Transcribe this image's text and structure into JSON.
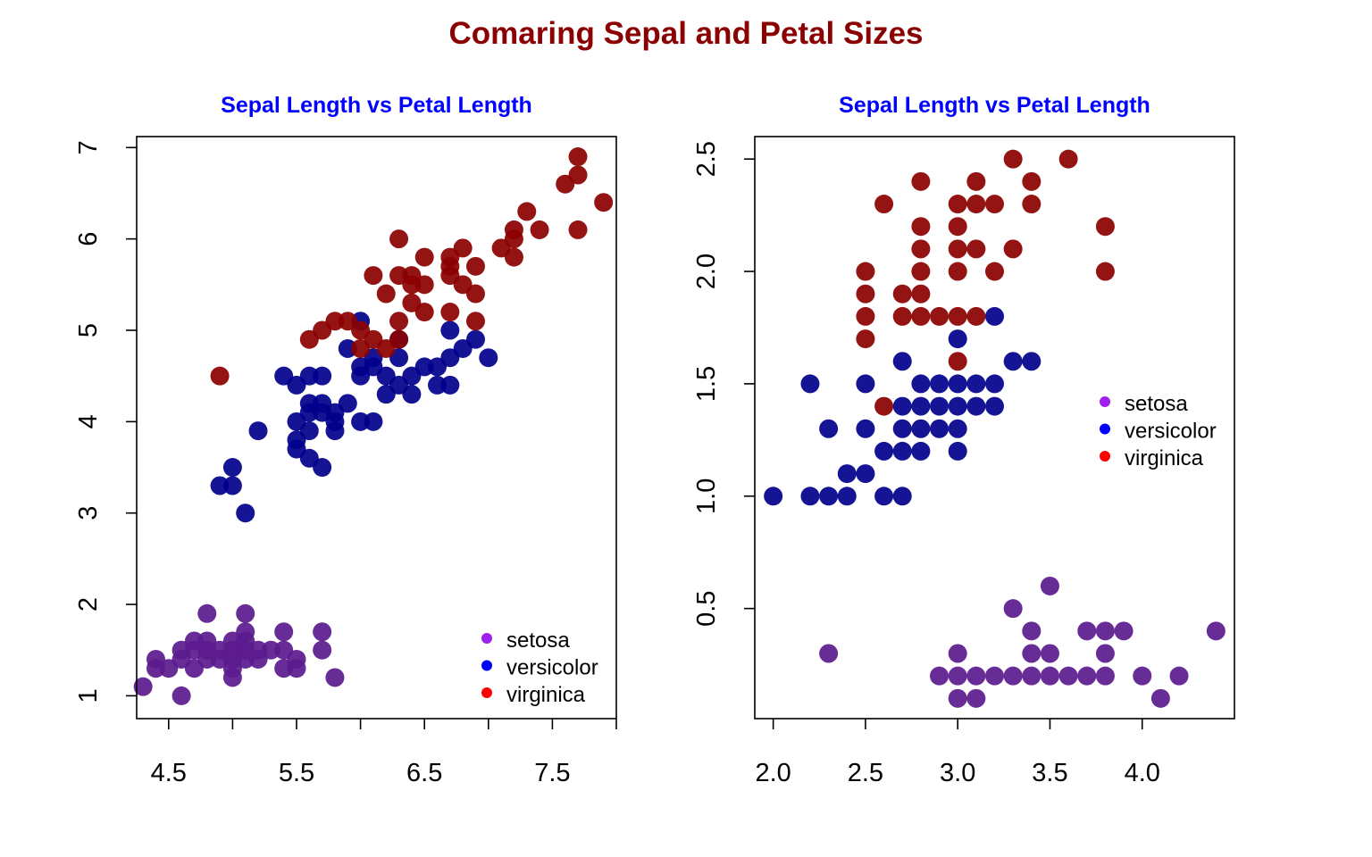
{
  "figure": {
    "title": "Comaring Sepal and Petal Sizes",
    "title_color": "#8B0000",
    "panel_title_color": "#0000FF",
    "legend_items": [
      {
        "label": "setosa",
        "color": "#A020F0"
      },
      {
        "label": "versicolor",
        "color": "#0000FF"
      },
      {
        "label": "virginica",
        "color": "#FF0000"
      }
    ]
  },
  "chart_data": [
    {
      "type": "scatter",
      "title": "Sepal Length vs Petal Length",
      "xlabel": "",
      "ylabel": "",
      "xlim": [
        4.25,
        8.0
      ],
      "ylim": [
        0.75,
        7.12
      ],
      "xticks": [
        4.5,
        5.0,
        5.5,
        6.0,
        6.5,
        7.0,
        7.5,
        8.0
      ],
      "xtick_labels": [
        "4.5",
        "",
        "5.5",
        "",
        "6.5",
        "",
        "7.5",
        ""
      ],
      "yticks": [
        1,
        2,
        3,
        4,
        5,
        6,
        7
      ],
      "ytick_labels": [
        "1",
        "2",
        "3",
        "4",
        "5",
        "6",
        "7"
      ],
      "grid": false,
      "legend_position": "bottom-right",
      "series": [
        {
          "name": "setosa",
          "color": "#A020F0",
          "points": [
            [
              4.3,
              1.1
            ],
            [
              4.4,
              1.4
            ],
            [
              4.4,
              1.3
            ],
            [
              4.5,
              1.3
            ],
            [
              4.6,
              1.4
            ],
            [
              4.6,
              1.5
            ],
            [
              4.6,
              1.0
            ],
            [
              4.7,
              1.3
            ],
            [
              4.7,
              1.6
            ],
            [
              4.7,
              1.5
            ],
            [
              4.8,
              1.6
            ],
            [
              4.8,
              1.4
            ],
            [
              4.8,
              1.9
            ],
            [
              4.8,
              1.5
            ],
            [
              4.9,
              1.5
            ],
            [
              4.9,
              1.4
            ],
            [
              5.0,
              1.4
            ],
            [
              5.0,
              1.5
            ],
            [
              5.0,
              1.6
            ],
            [
              5.0,
              1.2
            ],
            [
              5.0,
              1.3
            ],
            [
              5.1,
              1.4
            ],
            [
              5.1,
              1.5
            ],
            [
              5.1,
              1.7
            ],
            [
              5.1,
              1.9
            ],
            [
              5.1,
              1.6
            ],
            [
              5.2,
              1.5
            ],
            [
              5.2,
              1.4
            ],
            [
              5.3,
              1.5
            ],
            [
              5.4,
              1.7
            ],
            [
              5.4,
              1.5
            ],
            [
              5.4,
              1.3
            ],
            [
              5.5,
              1.4
            ],
            [
              5.5,
              1.3
            ],
            [
              5.7,
              1.5
            ],
            [
              5.7,
              1.7
            ],
            [
              5.8,
              1.2
            ]
          ]
        },
        {
          "name": "versicolor",
          "color": "#0000FF",
          "points": [
            [
              4.9,
              3.3
            ],
            [
              5.0,
              3.5
            ],
            [
              5.0,
              3.3
            ],
            [
              5.1,
              3.0
            ],
            [
              5.2,
              3.9
            ],
            [
              5.4,
              4.5
            ],
            [
              5.5,
              4.0
            ],
            [
              5.5,
              3.7
            ],
            [
              5.5,
              4.4
            ],
            [
              5.5,
              3.8
            ],
            [
              5.6,
              3.6
            ],
            [
              5.6,
              3.9
            ],
            [
              5.6,
              4.2
            ],
            [
              5.6,
              4.5
            ],
            [
              5.6,
              4.1
            ],
            [
              5.7,
              4.5
            ],
            [
              5.7,
              3.5
            ],
            [
              5.7,
              4.2
            ],
            [
              5.7,
              4.1
            ],
            [
              5.8,
              4.1
            ],
            [
              5.8,
              3.9
            ],
            [
              5.8,
              4.0
            ],
            [
              5.9,
              4.8
            ],
            [
              5.9,
              4.2
            ],
            [
              6.0,
              4.5
            ],
            [
              6.0,
              4.0
            ],
            [
              6.0,
              5.1
            ],
            [
              6.0,
              4.6
            ],
            [
              6.1,
              4.7
            ],
            [
              6.1,
              4.0
            ],
            [
              6.1,
              4.6
            ],
            [
              6.2,
              4.3
            ],
            [
              6.2,
              4.5
            ],
            [
              6.3,
              4.7
            ],
            [
              6.3,
              4.4
            ],
            [
              6.3,
              4.9
            ],
            [
              6.4,
              4.5
            ],
            [
              6.4,
              4.3
            ],
            [
              6.5,
              4.6
            ],
            [
              6.6,
              4.6
            ],
            [
              6.6,
              4.4
            ],
            [
              6.7,
              4.4
            ],
            [
              6.7,
              4.7
            ],
            [
              6.7,
              5.0
            ],
            [
              6.8,
              4.8
            ],
            [
              6.9,
              4.9
            ],
            [
              7.0,
              4.7
            ]
          ]
        },
        {
          "name": "virginica",
          "color": "#FF0000",
          "points": [
            [
              4.9,
              4.5
            ],
            [
              5.6,
              4.9
            ],
            [
              5.7,
              5.0
            ],
            [
              5.8,
              5.1
            ],
            [
              5.9,
              5.1
            ],
            [
              6.0,
              4.8
            ],
            [
              6.0,
              5.0
            ],
            [
              6.1,
              4.9
            ],
            [
              6.1,
              5.6
            ],
            [
              6.2,
              4.8
            ],
            [
              6.2,
              5.4
            ],
            [
              6.3,
              5.6
            ],
            [
              6.3,
              5.1
            ],
            [
              6.3,
              4.9
            ],
            [
              6.3,
              6.0
            ],
            [
              6.4,
              5.6
            ],
            [
              6.4,
              5.3
            ],
            [
              6.4,
              5.5
            ],
            [
              6.5,
              5.8
            ],
            [
              6.5,
              5.5
            ],
            [
              6.5,
              5.2
            ],
            [
              6.7,
              5.2
            ],
            [
              6.7,
              5.6
            ],
            [
              6.7,
              5.7
            ],
            [
              6.7,
              5.8
            ],
            [
              6.8,
              5.5
            ],
            [
              6.8,
              5.9
            ],
            [
              6.9,
              5.4
            ],
            [
              6.9,
              5.1
            ],
            [
              6.9,
              5.7
            ],
            [
              7.1,
              5.9
            ],
            [
              7.2,
              6.1
            ],
            [
              7.2,
              5.8
            ],
            [
              7.2,
              6.0
            ],
            [
              7.3,
              6.3
            ],
            [
              7.4,
              6.1
            ],
            [
              7.6,
              6.6
            ],
            [
              7.7,
              6.7
            ],
            [
              7.7,
              6.9
            ],
            [
              7.7,
              6.1
            ],
            [
              7.9,
              6.4
            ]
          ]
        }
      ]
    },
    {
      "type": "scatter",
      "title": "Sepal Length vs Petal Length",
      "xlabel": "",
      "ylabel": "",
      "xlim": [
        1.9,
        4.5
      ],
      "ylim": [
        0.01,
        2.6
      ],
      "xticks": [
        2.0,
        2.5,
        3.0,
        3.5,
        4.0
      ],
      "xtick_labels": [
        "2.0",
        "2.5",
        "3.0",
        "3.5",
        "4.0"
      ],
      "yticks": [
        0.5,
        1.0,
        1.5,
        2.0,
        2.5
      ],
      "ytick_labels": [
        "0.5",
        "1.0",
        "1.5",
        "2.0",
        "2.5"
      ],
      "grid": false,
      "legend_position": "right",
      "series": [
        {
          "name": "setosa",
          "color": "#A020F0",
          "points": [
            [
              2.3,
              0.3
            ],
            [
              2.9,
              0.2
            ],
            [
              3.0,
              0.2
            ],
            [
              3.0,
              0.1
            ],
            [
              3.0,
              0.3
            ],
            [
              3.1,
              0.2
            ],
            [
              3.1,
              0.1
            ],
            [
              3.2,
              0.2
            ],
            [
              3.3,
              0.2
            ],
            [
              3.3,
              0.5
            ],
            [
              3.4,
              0.2
            ],
            [
              3.4,
              0.4
            ],
            [
              3.4,
              0.3
            ],
            [
              3.5,
              0.2
            ],
            [
              3.5,
              0.3
            ],
            [
              3.5,
              0.6
            ],
            [
              3.6,
              0.2
            ],
            [
              3.7,
              0.2
            ],
            [
              3.7,
              0.4
            ],
            [
              3.8,
              0.2
            ],
            [
              3.8,
              0.3
            ],
            [
              3.8,
              0.4
            ],
            [
              3.9,
              0.4
            ],
            [
              4.0,
              0.2
            ],
            [
              4.1,
              0.1
            ],
            [
              4.2,
              0.2
            ],
            [
              4.4,
              0.4
            ]
          ]
        },
        {
          "name": "versicolor",
          "color": "#0000FF",
          "points": [
            [
              2.0,
              1.0
            ],
            [
              2.2,
              1.0
            ],
            [
              2.2,
              1.5
            ],
            [
              2.3,
              1.0
            ],
            [
              2.3,
              1.3
            ],
            [
              2.4,
              1.0
            ],
            [
              2.4,
              1.1
            ],
            [
              2.5,
              1.1
            ],
            [
              2.5,
              1.3
            ],
            [
              2.5,
              1.5
            ],
            [
              2.6,
              1.0
            ],
            [
              2.6,
              1.2
            ],
            [
              2.7,
              1.0
            ],
            [
              2.7,
              1.2
            ],
            [
              2.7,
              1.3
            ],
            [
              2.7,
              1.4
            ],
            [
              2.7,
              1.6
            ],
            [
              2.8,
              1.2
            ],
            [
              2.8,
              1.3
            ],
            [
              2.8,
              1.4
            ],
            [
              2.8,
              1.5
            ],
            [
              2.9,
              1.3
            ],
            [
              2.9,
              1.4
            ],
            [
              2.9,
              1.5
            ],
            [
              3.0,
              1.2
            ],
            [
              3.0,
              1.3
            ],
            [
              3.0,
              1.4
            ],
            [
              3.0,
              1.5
            ],
            [
              3.0,
              1.7
            ],
            [
              3.1,
              1.4
            ],
            [
              3.1,
              1.5
            ],
            [
              3.2,
              1.4
            ],
            [
              3.2,
              1.5
            ],
            [
              3.2,
              1.8
            ],
            [
              3.3,
              1.6
            ],
            [
              3.4,
              1.6
            ]
          ]
        },
        {
          "name": "virginica",
          "color": "#FF0000",
          "points": [
            [
              2.5,
              1.7
            ],
            [
              2.5,
              1.8
            ],
            [
              2.5,
              1.9
            ],
            [
              2.5,
              2.0
            ],
            [
              2.6,
              1.4
            ],
            [
              2.6,
              2.3
            ],
            [
              2.7,
              1.8
            ],
            [
              2.7,
              1.9
            ],
            [
              2.8,
              1.8
            ],
            [
              2.8,
              1.9
            ],
            [
              2.8,
              2.0
            ],
            [
              2.8,
              2.1
            ],
            [
              2.8,
              2.2
            ],
            [
              2.8,
              2.4
            ],
            [
              2.9,
              1.8
            ],
            [
              3.0,
              1.6
            ],
            [
              3.0,
              1.8
            ],
            [
              3.0,
              2.0
            ],
            [
              3.0,
              2.1
            ],
            [
              3.0,
              2.2
            ],
            [
              3.0,
              2.3
            ],
            [
              3.1,
              1.8
            ],
            [
              3.1,
              2.1
            ],
            [
              3.1,
              2.3
            ],
            [
              3.1,
              2.4
            ],
            [
              3.2,
              2.0
            ],
            [
              3.2,
              2.3
            ],
            [
              3.3,
              2.1
            ],
            [
              3.3,
              2.5
            ],
            [
              3.4,
              2.4
            ],
            [
              3.4,
              2.3
            ],
            [
              3.6,
              2.5
            ],
            [
              3.8,
              2.0
            ],
            [
              3.8,
              2.2
            ]
          ]
        }
      ]
    }
  ]
}
